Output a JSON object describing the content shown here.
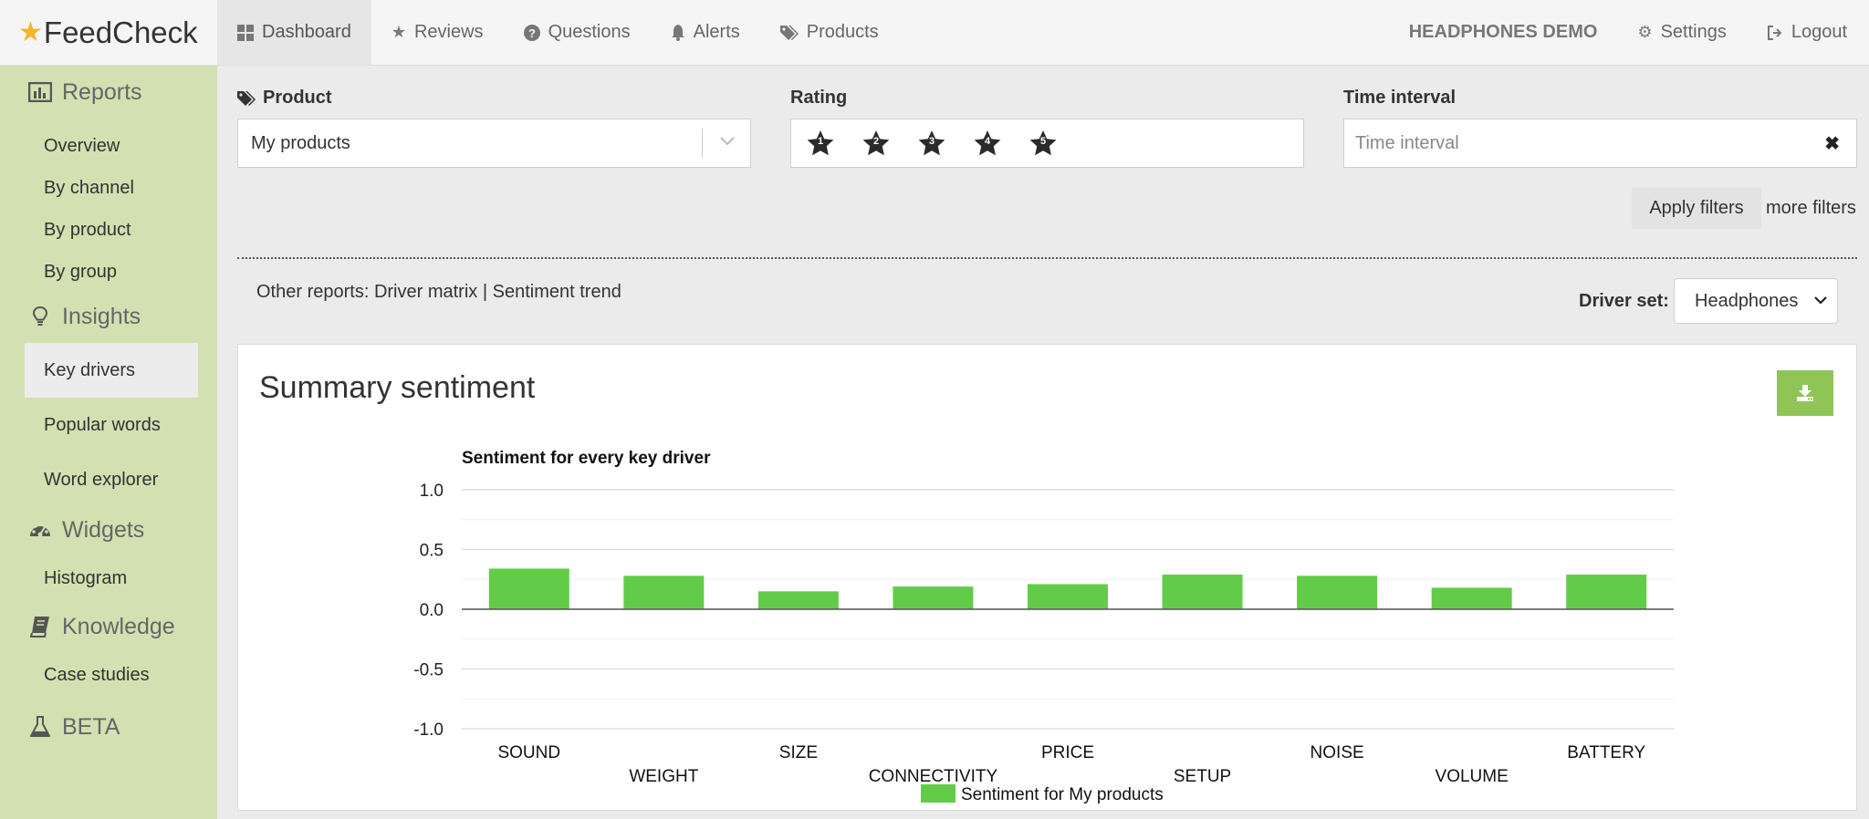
{
  "app": {
    "name": "FeedCheck"
  },
  "nav": {
    "items": [
      {
        "label": "Dashboard",
        "icon": "dashboard-icon"
      },
      {
        "label": "Reviews",
        "icon": "star-icon"
      },
      {
        "label": "Questions",
        "icon": "question-circle-icon"
      },
      {
        "label": "Alerts",
        "icon": "bell-icon"
      },
      {
        "label": "Products",
        "icon": "tags-icon"
      }
    ],
    "demo_label": "HEADPHONES DEMO",
    "settings_label": "Settings",
    "logout_label": "Logout"
  },
  "sidebar": {
    "sections": [
      {
        "label": "Reports",
        "icon": "bar-chart-icon",
        "items": [
          "Overview",
          "By channel",
          "By product",
          "By group"
        ]
      },
      {
        "label": "Insights",
        "icon": "lightbulb-icon",
        "items": [
          "Key drivers",
          "Popular words",
          "Word explorer"
        ]
      },
      {
        "label": "Widgets",
        "icon": "dashboard-gauge-icon",
        "items": [
          "Histogram"
        ]
      },
      {
        "label": "Knowledge",
        "icon": "book-icon",
        "items": [
          "Case studies"
        ]
      },
      {
        "label": "BETA",
        "icon": "flask-icon",
        "items": []
      }
    ],
    "active_item": "Key drivers"
  },
  "filters": {
    "product_label": "Product",
    "product_value": "My products",
    "rating_label": "Rating",
    "rating_stars": [
      "1",
      "2",
      "3",
      "4",
      "5"
    ],
    "time_label": "Time interval",
    "time_placeholder": "Time interval",
    "apply_label": "Apply filters",
    "more_label": "more filters"
  },
  "reports": {
    "prefix": "Other reports:",
    "link1": "Driver matrix",
    "divider": "|",
    "link2": "Sentiment trend",
    "driver_set_label": "Driver set:",
    "driver_set_value": "Headphones"
  },
  "panel": {
    "title": "Summary sentiment"
  },
  "chart_data": {
    "type": "bar",
    "title": "Sentiment for every key driver",
    "categories": [
      "SOUND",
      "WEIGHT",
      "SIZE",
      "CONNECTIVITY",
      "PRICE",
      "SETUP",
      "NOISE",
      "VOLUME",
      "BATTERY"
    ],
    "series": [
      {
        "name": "Sentiment for My products",
        "values": [
          0.34,
          0.28,
          0.15,
          0.19,
          0.21,
          0.29,
          0.28,
          0.18,
          0.29
        ],
        "color": "#62cc48"
      }
    ],
    "ylim": [
      -1.0,
      1.0
    ],
    "yticks": [
      "1.0",
      "0.5",
      "0.0",
      "-0.5",
      "-1.0"
    ],
    "grid": true,
    "legend": "bottom"
  }
}
